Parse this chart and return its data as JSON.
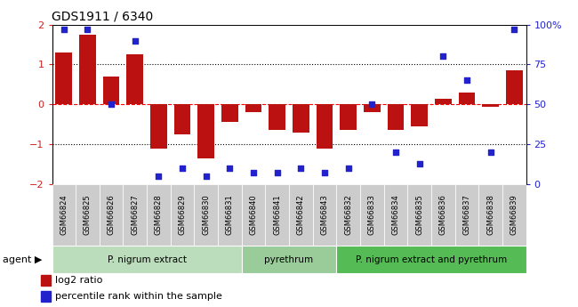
{
  "title": "GDS1911 / 6340",
  "samples": [
    "GSM66824",
    "GSM66825",
    "GSM66826",
    "GSM66827",
    "GSM66828",
    "GSM66829",
    "GSM66830",
    "GSM66831",
    "GSM66840",
    "GSM66841",
    "GSM66842",
    "GSM66843",
    "GSM66832",
    "GSM66833",
    "GSM66834",
    "GSM66835",
    "GSM66836",
    "GSM66837",
    "GSM66838",
    "GSM66839"
  ],
  "log2_ratio": [
    1.3,
    1.75,
    0.7,
    1.25,
    -1.1,
    -0.75,
    -1.35,
    -0.45,
    -0.2,
    -0.65,
    -0.7,
    -1.1,
    -0.65,
    -0.2,
    -0.65,
    -0.55,
    0.15,
    0.3,
    -0.05,
    0.85
  ],
  "percentile": [
    97,
    97,
    50,
    90,
    5,
    10,
    5,
    10,
    7,
    7,
    10,
    7,
    10,
    50,
    20,
    13,
    80,
    65,
    20,
    97
  ],
  "bar_color": "#bb1111",
  "dot_color": "#2222cc",
  "ylim_left": [
    -2,
    2
  ],
  "ylim_right": [
    0,
    100
  ],
  "yticks_left": [
    -2,
    -1,
    0,
    1,
    2
  ],
  "yticks_right": [
    0,
    25,
    50,
    75,
    100
  ],
  "ytick_labels_right": [
    "0",
    "25",
    "50",
    "75",
    "100%"
  ],
  "groups": [
    {
      "label": "P. nigrum extract",
      "start": 0,
      "end": 8,
      "color": "#bbddbb"
    },
    {
      "label": "pyrethrum",
      "start": 8,
      "end": 12,
      "color": "#99cc99"
    },
    {
      "label": "P. nigrum extract and pyrethrum",
      "start": 12,
      "end": 20,
      "color": "#55bb55"
    }
  ],
  "legend_items": [
    {
      "label": "log2 ratio",
      "color": "#bb1111",
      "marker": "rect"
    },
    {
      "label": "percentile rank within the sample",
      "color": "#2222cc",
      "marker": "rect"
    }
  ],
  "bar_width": 0.7,
  "ticklabel_bg": "#bbbbbb",
  "sample_fontsize": 6.5,
  "group_fontsize": 8.0
}
